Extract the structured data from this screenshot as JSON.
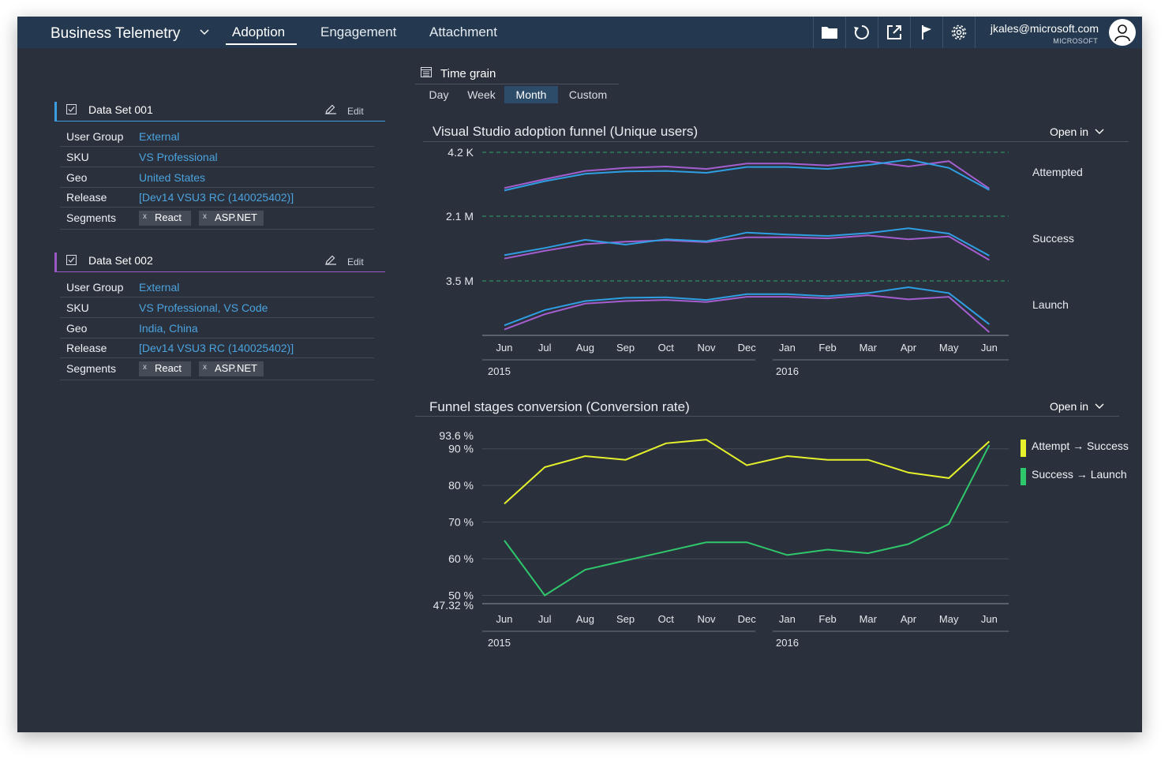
{
  "app": {
    "title": "Business Telemetry",
    "tabs": [
      {
        "label": "Adoption",
        "active": true
      },
      {
        "label": "Engagement",
        "active": false
      },
      {
        "label": "Attachment",
        "active": false
      }
    ],
    "toolbar_icons": [
      "folder-icon",
      "refresh-icon",
      "open-external-icon",
      "flag-icon",
      "gear-icon"
    ],
    "user": {
      "email": "jkales@microsoft.com",
      "org": "MICROSOFT"
    }
  },
  "datasets": [
    {
      "title": "Data Set 001",
      "edit_label": "Edit",
      "color": "#3a9de0",
      "rows": [
        {
          "label": "User Group",
          "value": "External"
        },
        {
          "label": "SKU",
          "value": "VS Professional"
        },
        {
          "label": "Geo",
          "value": "United States"
        },
        {
          "label": "Release",
          "value": "[Dev14 VSU3 RC (140025402)]"
        }
      ],
      "segments_label": "Segments",
      "segments": [
        {
          "x": "x",
          "label": "React"
        },
        {
          "x": "x",
          "label": "ASP.NET"
        }
      ]
    },
    {
      "title": "Data Set 002",
      "edit_label": "Edit",
      "color": "#9b59c6",
      "rows": [
        {
          "label": "User Group",
          "value": "External"
        },
        {
          "label": "SKU",
          "value": "VS Professional, VS Code"
        },
        {
          "label": "Geo",
          "value": "India, China"
        },
        {
          "label": "Release",
          "value": "[Dev14 VSU3 RC (140025402)]"
        }
      ],
      "segments_label": "Segments",
      "segments": [
        {
          "x": "x",
          "label": "React"
        },
        {
          "x": "x",
          "label": "ASP.NET"
        }
      ]
    }
  ],
  "time_grain": {
    "title": "Time grain",
    "options": [
      "Day",
      "Week",
      "Month",
      "Custom"
    ],
    "selected": "Month"
  },
  "chart_data": [
    {
      "type": "line",
      "title": "Visual Studio adoption funnel (Unique users)",
      "open_in": "Open in",
      "categories": [
        "Jun",
        "Jul",
        "Aug",
        "Sep",
        "Oct",
        "Nov",
        "Dec",
        "Jan",
        "Feb",
        "Mar",
        "Apr",
        "May",
        "Jun"
      ],
      "years": [
        "2015",
        "2016"
      ],
      "panels": [
        {
          "name": "Attempted",
          "max_label": "4.2 K",
          "series": [
            {
              "color": "#a55ed0",
              "values": [
                0.27,
                0.45,
                0.62,
                0.68,
                0.71,
                0.66,
                0.77,
                0.77,
                0.73,
                0.82,
                0.71,
                0.82,
                0.26
              ]
            },
            {
              "color": "#2f9fe4",
              "values": [
                0.22,
                0.41,
                0.56,
                0.61,
                0.62,
                0.58,
                0.7,
                0.7,
                0.66,
                0.74,
                0.85,
                0.68,
                0.23
              ]
            }
          ]
        },
        {
          "name": "Success",
          "max_label": "2.1 M",
          "series": [
            {
              "color": "#a55ed0",
              "values": [
                0.12,
                0.28,
                0.42,
                0.47,
                0.5,
                0.46,
                0.56,
                0.56,
                0.54,
                0.6,
                0.52,
                0.58,
                0.09
              ]
            },
            {
              "color": "#2f9fe4",
              "values": [
                0.19,
                0.34,
                0.51,
                0.41,
                0.52,
                0.48,
                0.66,
                0.62,
                0.59,
                0.65,
                0.75,
                0.64,
                0.18
              ]
            }
          ]
        },
        {
          "name": "Launch",
          "max_label": "3.5 M",
          "series": [
            {
              "color": "#a55ed0",
              "values": [
                0.08,
                0.37,
                0.57,
                0.62,
                0.64,
                0.6,
                0.7,
                0.7,
                0.67,
                0.73,
                0.65,
                0.7,
                0.03
              ]
            },
            {
              "color": "#2f9fe4",
              "values": [
                0.16,
                0.45,
                0.62,
                0.68,
                0.69,
                0.64,
                0.75,
                0.75,
                0.71,
                0.77,
                0.88,
                0.77,
                0.18
              ]
            }
          ]
        }
      ]
    },
    {
      "type": "line",
      "title": "Funnel stages conversion (Conversion rate)",
      "open_in": "Open in",
      "categories": [
        "Jun",
        "Jul",
        "Aug",
        "Sep",
        "Oct",
        "Nov",
        "Dec",
        "Jan",
        "Feb",
        "Mar",
        "Apr",
        "May",
        "Jun"
      ],
      "years": [
        "2015",
        "2016"
      ],
      "y_ticks": [
        {
          "value": 93.6,
          "label": "93.6 %"
        },
        {
          "value": 90,
          "label": "90 %"
        },
        {
          "value": 80,
          "label": "80 %"
        },
        {
          "value": 70,
          "label": "70 %"
        },
        {
          "value": 60,
          "label": "60 %"
        },
        {
          "value": 50,
          "label": "50 %"
        },
        {
          "value": 47.32,
          "label": "47.32 %"
        }
      ],
      "ylim": [
        47.32,
        93.6
      ],
      "legend_position": "right",
      "series": [
        {
          "name": "Attempt → Success",
          "color": "#e5f22b",
          "values": [
            75,
            85,
            88,
            87,
            91.5,
            92.5,
            85.5,
            88,
            87,
            87,
            83.5,
            82,
            92
          ]
        },
        {
          "name": "Success → Launch",
          "color": "#2fc76b",
          "values": [
            65,
            50,
            57,
            59.5,
            62,
            64.5,
            64.5,
            61,
            62.5,
            61.5,
            64,
            69.5,
            91
          ]
        }
      ]
    }
  ]
}
